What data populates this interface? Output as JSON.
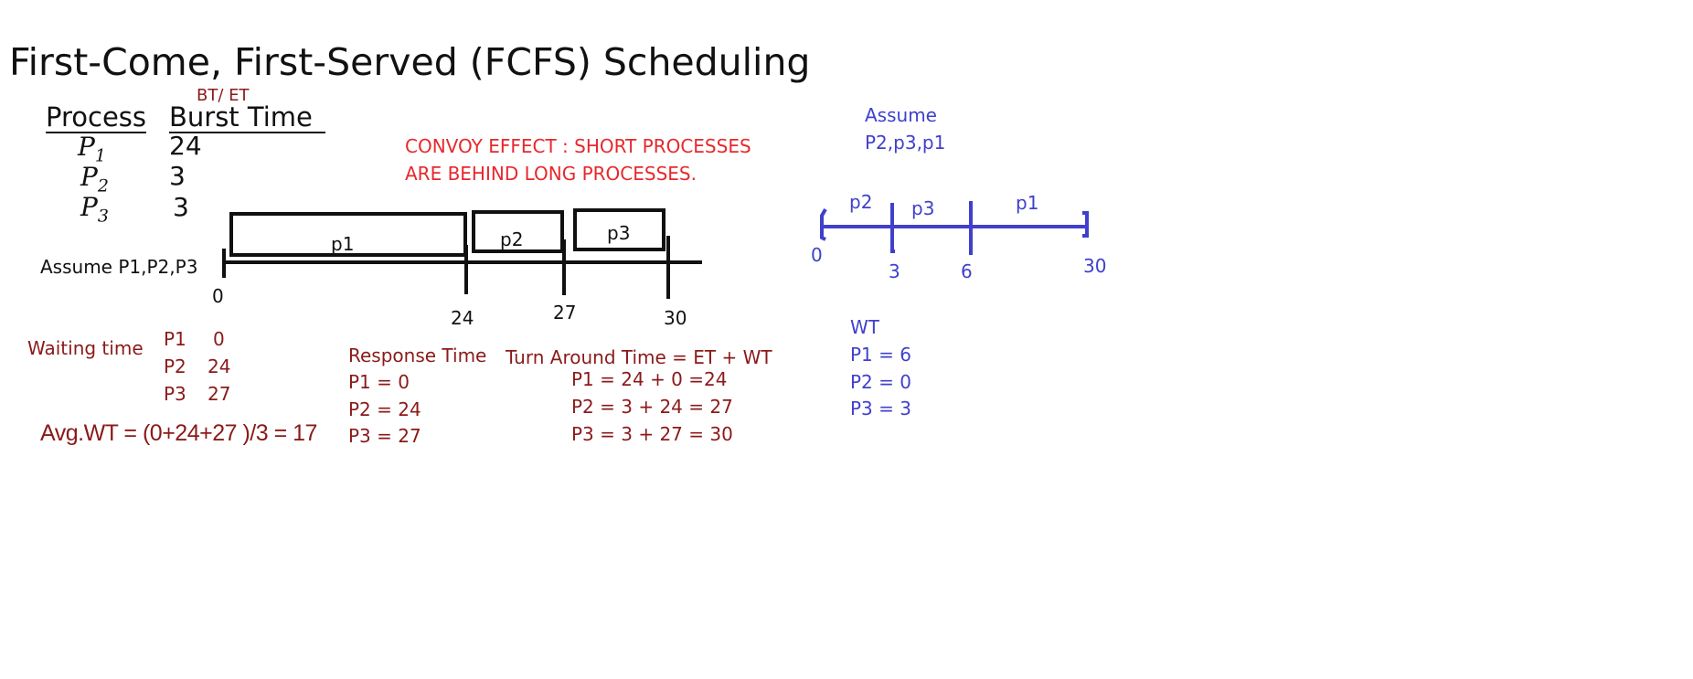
{
  "title": "First-Come, First-Served (FCFS) Scheduling",
  "table": {
    "bt_et_note": "BT/ ET",
    "headers": {
      "process": "Process",
      "burst": "Burst Time"
    },
    "rows": [
      {
        "name": "P",
        "sub": "1",
        "burst": "24"
      },
      {
        "name": "P",
        "sub": "2",
        "burst": "3"
      },
      {
        "name": "P",
        "sub": "3",
        "burst": "3"
      }
    ]
  },
  "convoy": {
    "line1": "CONVOY EFFECT : SHORT PROCESSES",
    "line2": "ARE BEHIND LONG PROCESSES."
  },
  "gantt1": {
    "assume": "Assume P1,P2,P3",
    "blocks": [
      {
        "label": "p1",
        "start": 0,
        "end": 24
      },
      {
        "label": "p2",
        "start": 24,
        "end": 27
      },
      {
        "label": "p3",
        "start": 27,
        "end": 30
      }
    ],
    "ticks": [
      "0",
      "24",
      "27",
      "30"
    ]
  },
  "waiting": {
    "label": "Waiting time",
    "rows": [
      {
        "p": "P1",
        "v": "0"
      },
      {
        "p": "P2",
        "v": "24"
      },
      {
        "p": "P3",
        "v": "27"
      }
    ],
    "avg": "Avg.WT = (0+24+27 )/3 = 17"
  },
  "response": {
    "title": "Response Time",
    "rows": [
      "P1 = 0",
      "P2 = 24",
      "P3 = 27"
    ]
  },
  "tat": {
    "title": "Turn Around Time = ET + WT",
    "rows": [
      "P1 = 24 + 0 =24",
      "P2 = 3 + 24 = 27",
      "P3 = 3 + 27 = 30"
    ]
  },
  "gantt2": {
    "assume_line1": "Assume",
    "assume_line2": "P2,p3,p1",
    "segments": [
      {
        "label": "p2",
        "start": 0,
        "end": 3
      },
      {
        "label": "p3",
        "start": 3,
        "end": 6
      },
      {
        "label": "p1",
        "start": 6,
        "end": 30
      }
    ],
    "ticks": [
      "0",
      "3",
      "6",
      "30"
    ],
    "wt_title": "WT",
    "wt_rows": [
      "P1 = 6",
      "P2 = 0",
      "P3 = 3"
    ]
  },
  "colors": {
    "black": "#111111",
    "maroon": "#8b1a1a",
    "red": "#e8282c",
    "blue": "#4040cc"
  }
}
